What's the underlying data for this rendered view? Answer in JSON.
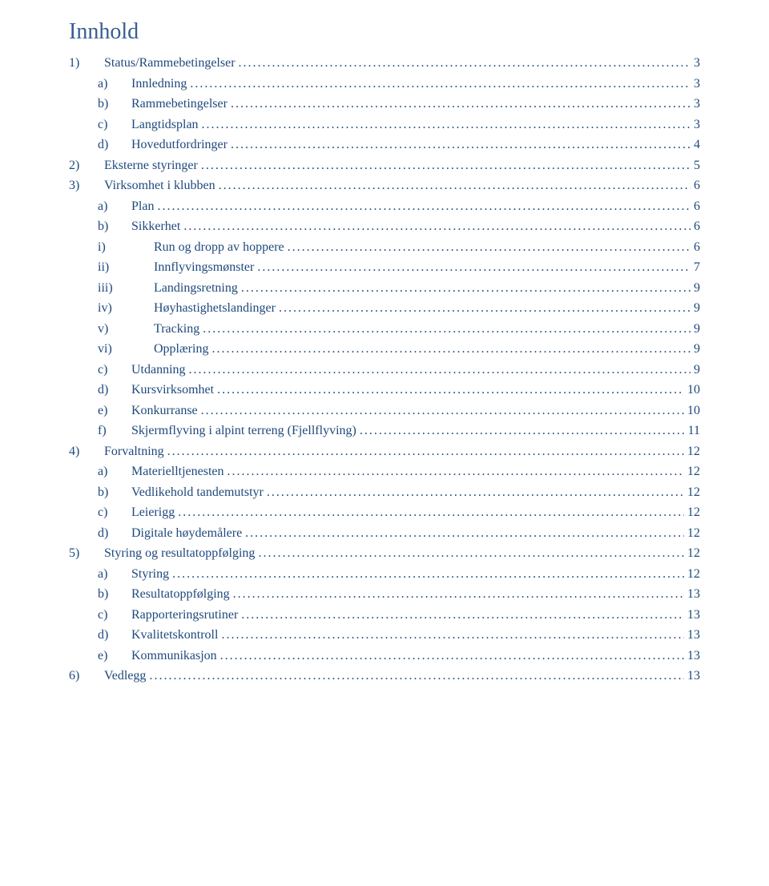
{
  "heading": "Innhold",
  "link_color": "#1f497d",
  "heading_color": "#365f91",
  "background_color": "#ffffff",
  "font_family": "Times New Roman",
  "heading_font_size": 28,
  "body_font_size": 16,
  "entries": [
    {
      "level": 1,
      "marker": "1)",
      "label": "Status/Rammebetingelser",
      "page": "3"
    },
    {
      "level": 2,
      "marker": "a)",
      "label": "Innledning",
      "page": "3"
    },
    {
      "level": 2,
      "marker": "b)",
      "label": "Rammebetingelser",
      "page": "3"
    },
    {
      "level": 2,
      "marker": "c)",
      "label": "Langtidsplan",
      "page": "3"
    },
    {
      "level": 2,
      "marker": "d)",
      "label": "Hovedutfordringer",
      "page": "4"
    },
    {
      "level": 1,
      "marker": "2)",
      "label": "Eksterne styringer",
      "page": "5"
    },
    {
      "level": 1,
      "marker": "3)",
      "label": "Virksomhet i klubben",
      "page": "6"
    },
    {
      "level": 2,
      "marker": "a)",
      "label": "Plan",
      "page": "6"
    },
    {
      "level": 2,
      "marker": "b)",
      "label": "Sikkerhet",
      "page": "6"
    },
    {
      "level": 3,
      "marker": "i)",
      "label": "Run og dropp av hoppere",
      "page": "6"
    },
    {
      "level": 3,
      "marker": "ii)",
      "label": "Innflyvingsmønster",
      "page": "7"
    },
    {
      "level": 3,
      "marker": "iii)",
      "label": "Landingsretning",
      "page": "9"
    },
    {
      "level": 3,
      "marker": "iv)",
      "label": "Høyhastighetslandinger",
      "page": "9"
    },
    {
      "level": 3,
      "marker": "v)",
      "label": "Tracking",
      "page": "9"
    },
    {
      "level": 3,
      "marker": "vi)",
      "label": "Opplæring",
      "page": "9"
    },
    {
      "level": 2,
      "marker": "c)",
      "label": "Utdanning",
      "page": "9"
    },
    {
      "level": 2,
      "marker": "d)",
      "label": "Kursvirksomhet",
      "page": "10"
    },
    {
      "level": 2,
      "marker": "e)",
      "label": "Konkurranse",
      "page": "10"
    },
    {
      "level": 2,
      "marker": "f)",
      "label": "Skjermflyving i alpint terreng (Fjellflyving)",
      "page": "11"
    },
    {
      "level": 1,
      "marker": "4)",
      "label": "Forvaltning",
      "page": "12"
    },
    {
      "level": 2,
      "marker": "a)",
      "label": "Materielltjenesten",
      "page": "12"
    },
    {
      "level": 2,
      "marker": "b)",
      "label": "Vedlikehold tandemutstyr",
      "page": "12"
    },
    {
      "level": 2,
      "marker": "c)",
      "label": "Leierigg",
      "page": "12"
    },
    {
      "level": 2,
      "marker": "d)",
      "label": "Digitale høydemålere",
      "page": "12"
    },
    {
      "level": 1,
      "marker": "5)",
      "label": "Styring og resultatoppfølging",
      "page": "12"
    },
    {
      "level": 2,
      "marker": "a)",
      "label": "Styring",
      "page": "12"
    },
    {
      "level": 2,
      "marker": "b)",
      "label": "Resultatoppfølging",
      "page": "13"
    },
    {
      "level": 2,
      "marker": "c)",
      "label": "Rapporteringsrutiner",
      "page": "13"
    },
    {
      "level": 2,
      "marker": "d)",
      "label": "Kvalitetskontroll",
      "page": "13"
    },
    {
      "level": 2,
      "marker": "e)",
      "label": "Kommunikasjon",
      "page": "13"
    },
    {
      "level": 1,
      "marker": "6)",
      "label": "Vedlegg",
      "page": "13"
    }
  ]
}
